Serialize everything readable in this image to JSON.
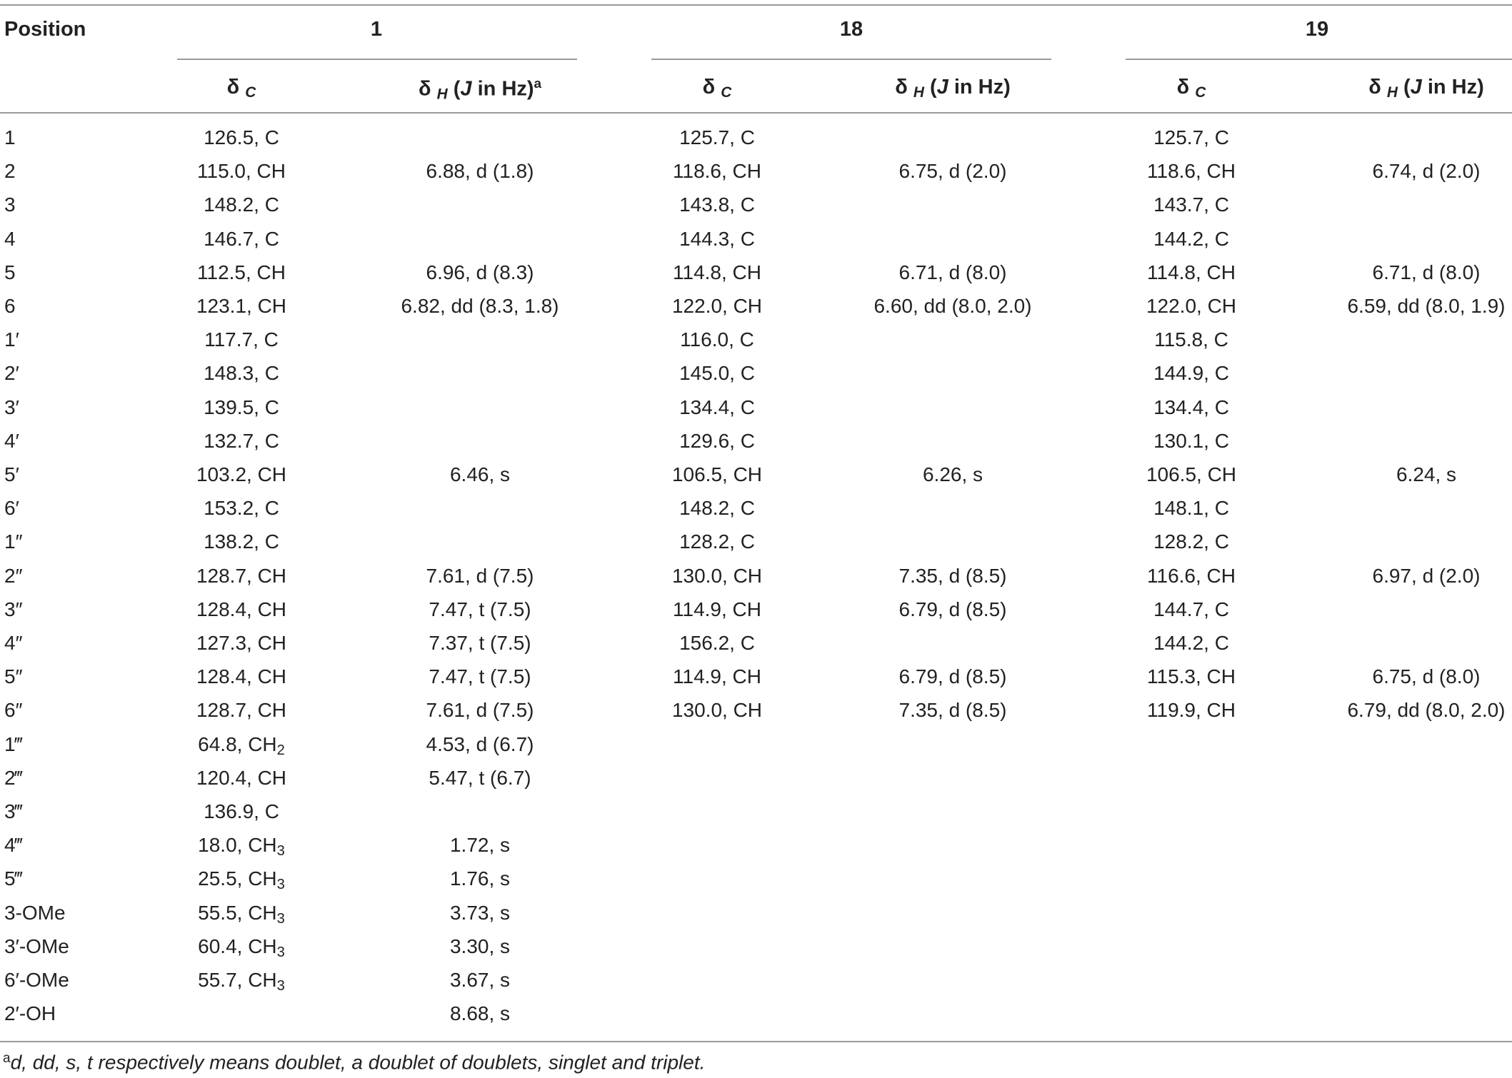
{
  "header": {
    "position_label": "Position",
    "groups": [
      "1",
      "18",
      "19"
    ],
    "dc_symbol": "δ",
    "dc_sub": "C",
    "dh_symbol": "δ",
    "dh_sub": "H",
    "dh_paren_open": " (",
    "dh_j": "J",
    "dh_unit": " in Hz)",
    "dh_footnote_mark": "a"
  },
  "rows": [
    {
      "pos": "1",
      "c1": "126.5, C",
      "h1": "",
      "c18": "125.7, C",
      "h18": "",
      "c19": "125.7, C",
      "h19": ""
    },
    {
      "pos": "2",
      "c1": "115.0, CH",
      "h1": "6.88, d (1.8)",
      "c18": "118.6, CH",
      "h18": "6.75, d (2.0)",
      "c19": "118.6, CH",
      "h19": "6.74, d (2.0)"
    },
    {
      "pos": "3",
      "c1": "148.2, C",
      "h1": "",
      "c18": "143.8, C",
      "h18": "",
      "c19": "143.7, C",
      "h19": ""
    },
    {
      "pos": "4",
      "c1": "146.7, C",
      "h1": "",
      "c18": "144.3, C",
      "h18": "",
      "c19": "144.2, C",
      "h19": ""
    },
    {
      "pos": "5",
      "c1": "112.5, CH",
      "h1": "6.96, d (8.3)",
      "c18": "114.8, CH",
      "h18": "6.71, d (8.0)",
      "c19": "114.8, CH",
      "h19": "6.71, d (8.0)"
    },
    {
      "pos": "6",
      "c1": "123.1, CH",
      "h1": "6.82, dd (8.3, 1.8)",
      "c18": "122.0, CH",
      "h18": "6.60, dd (8.0, 2.0)",
      "c19": "122.0, CH",
      "h19": "6.59, dd (8.0, 1.9)"
    },
    {
      "pos": "1′",
      "c1": "117.7, C",
      "h1": "",
      "c18": "116.0, C",
      "h18": "",
      "c19": "115.8, C",
      "h19": ""
    },
    {
      "pos": "2′",
      "c1": "148.3, C",
      "h1": "",
      "c18": "145.0, C",
      "h18": "",
      "c19": "144.9, C",
      "h19": ""
    },
    {
      "pos": "3′",
      "c1": "139.5, C",
      "h1": "",
      "c18": "134.4, C",
      "h18": "",
      "c19": "134.4, C",
      "h19": ""
    },
    {
      "pos": "4′",
      "c1": "132.7, C",
      "h1": "",
      "c18": "129.6, C",
      "h18": "",
      "c19": "130.1, C",
      "h19": ""
    },
    {
      "pos": "5′",
      "c1": "103.2, CH",
      "h1": "6.46, s",
      "c18": "106.5, CH",
      "h18": "6.26, s",
      "c19": "106.5, CH",
      "h19": "6.24, s"
    },
    {
      "pos": "6′",
      "c1": "153.2, C",
      "h1": "",
      "c18": "148.2, C",
      "h18": "",
      "c19": "148.1, C",
      "h19": ""
    },
    {
      "pos": "1″",
      "c1": "138.2, C",
      "h1": "",
      "c18": "128.2, C",
      "h18": "",
      "c19": "128.2, C",
      "h19": ""
    },
    {
      "pos": "2″",
      "c1": "128.7, CH",
      "h1": "7.61, d (7.5)",
      "c18": "130.0, CH",
      "h18": "7.35, d (8.5)",
      "c19": "116.6, CH",
      "h19": "6.97, d (2.0)"
    },
    {
      "pos": "3″",
      "c1": "128.4, CH",
      "h1": "7.47, t (7.5)",
      "c18": "114.9, CH",
      "h18": "6.79, d (8.5)",
      "c19": "144.7, C",
      "h19": ""
    },
    {
      "pos": "4″",
      "c1": "127.3, CH",
      "h1": "7.37, t (7.5)",
      "c18": "156.2, C",
      "h18": "",
      "c19": "144.2, C",
      "h19": ""
    },
    {
      "pos": "5″",
      "c1": "128.4, CH",
      "h1": "7.47, t (7.5)",
      "c18": "114.9, CH",
      "h18": "6.79, d (8.5)",
      "c19": "115.3, CH",
      "h19": "6.75, d (8.0)"
    },
    {
      "pos": "6″",
      "c1": "128.7, CH",
      "h1": "7.61, d (7.5)",
      "c18": "130.0, CH",
      "h18": "7.35, d (8.5)",
      "c19": "119.9, CH",
      "h19": "6.79, dd (8.0, 2.0)"
    },
    {
      "pos": "1‴",
      "c1": "64.8, CH",
      "c1_sub": "2",
      "h1": "4.53, d (6.7)",
      "c18": "",
      "h18": "",
      "c19": "",
      "h19": ""
    },
    {
      "pos": "2‴",
      "c1": "120.4, CH",
      "h1": "5.47, t (6.7)",
      "c18": "",
      "h18": "",
      "c19": "",
      "h19": ""
    },
    {
      "pos": "3‴",
      "c1": "136.9, C",
      "h1": "",
      "c18": "",
      "h18": "",
      "c19": "",
      "h19": ""
    },
    {
      "pos": "4‴",
      "c1": "18.0, CH",
      "c1_sub": "3",
      "h1": "1.72, s",
      "c18": "",
      "h18": "",
      "c19": "",
      "h19": ""
    },
    {
      "pos": "5‴",
      "c1": "25.5, CH",
      "c1_sub": "3",
      "h1": "1.76, s",
      "c18": "",
      "h18": "",
      "c19": "",
      "h19": ""
    },
    {
      "pos": "3-OMe",
      "c1": "55.5, CH",
      "c1_sub": "3",
      "h1": "3.73, s",
      "c18": "",
      "h18": "",
      "c19": "",
      "h19": ""
    },
    {
      "pos": "3′-OMe",
      "c1": "60.4, CH",
      "c1_sub": "3",
      "h1": "3.30, s",
      "c18": "",
      "h18": "",
      "c19": "",
      "h19": ""
    },
    {
      "pos": "6′-OMe",
      "c1": "55.7, CH",
      "c1_sub": "3",
      "h1": "3.67, s",
      "c18": "",
      "h18": "",
      "c19": "",
      "h19": ""
    },
    {
      "pos": "2′-OH",
      "c1": "",
      "h1": "8.68, s",
      "c18": "",
      "h18": "",
      "c19": "",
      "h19": ""
    }
  ],
  "footnote": {
    "mark": "a",
    "text": "d, dd, s, t respectively means doublet, a doublet of doublets, singlet and triplet."
  }
}
